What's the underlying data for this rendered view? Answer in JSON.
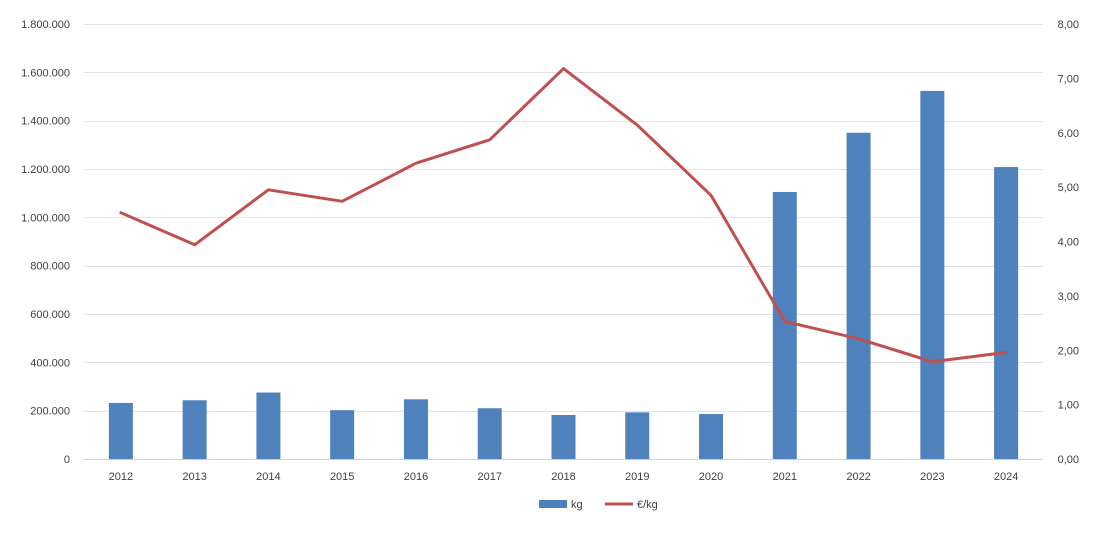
{
  "chart_data": {
    "type": "bar",
    "categories": [
      "2012",
      "2013",
      "2014",
      "2015",
      "2016",
      "2017",
      "2018",
      "2019",
      "2020",
      "2021",
      "2022",
      "2023",
      "2024"
    ],
    "series": [
      {
        "name": "kg",
        "type": "bar",
        "axis": "left",
        "color": "#4F81BD",
        "values": [
          232000,
          243000,
          275000,
          202000,
          247000,
          210000,
          182000,
          193000,
          186000,
          1105000,
          1350000,
          1523000,
          1208000
        ]
      },
      {
        "name": "€/kg",
        "type": "line",
        "axis": "right",
        "color": "#C0504D",
        "values": [
          4.53,
          3.94,
          4.95,
          4.74,
          5.44,
          5.87,
          7.18,
          6.14,
          4.85,
          2.53,
          2.21,
          1.79,
          1.96
        ]
      }
    ],
    "y_left": {
      "ylim": [
        0,
        1800000
      ],
      "ticks": [
        0,
        200000,
        400000,
        600000,
        800000,
        1000000,
        1200000,
        1400000,
        1600000,
        1800000
      ],
      "tick_labels": [
        "0",
        "200.000",
        "400.000",
        "600.000",
        "800.000",
        "1.000.000",
        "1.200.000",
        "1.400.000",
        "1.600.000",
        "1.800.000"
      ]
    },
    "y_right": {
      "ylim": [
        0,
        8
      ],
      "ticks": [
        0,
        1,
        2,
        3,
        4,
        5,
        6,
        7,
        8
      ],
      "tick_labels": [
        "0,00",
        "1,00",
        "2,00",
        "3,00",
        "4,00",
        "5,00",
        "6,00",
        "7,00",
        "8,00"
      ]
    },
    "grid": true,
    "legend_position": "bottom",
    "title": "",
    "xlabel": "",
    "ylabel": ""
  }
}
